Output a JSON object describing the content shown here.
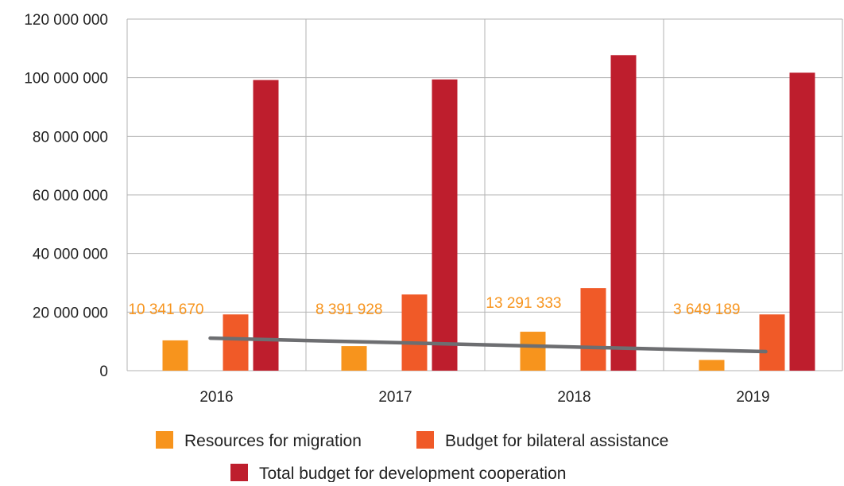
{
  "chart_data": {
    "type": "bar",
    "title": "",
    "xlabel": "",
    "ylabel": "",
    "ylim": [
      0,
      120000000
    ],
    "yticks": [
      0,
      20000000,
      40000000,
      60000000,
      80000000,
      100000000,
      120000000
    ],
    "ytick_labels": [
      "0",
      "20 000 000",
      "40 000 000",
      "60 000 000",
      "80 000 000",
      "100 000 000",
      "120 000 000"
    ],
    "grid": true,
    "legend_position": "bottom",
    "categories": [
      "2016",
      "2017",
      "2018",
      "2019"
    ],
    "series": [
      {
        "name": "Resources for migration",
        "color": "#f7941d",
        "values": [
          10341670,
          8391928,
          13291333,
          3649189
        ],
        "data_labels": [
          "10 341 670",
          "8 391 928",
          "13 291 333",
          "3 649 189"
        ]
      },
      {
        "name": "Budget for bilateral assistance",
        "color": "#f05a28",
        "values": [
          19200000,
          26000000,
          28200000,
          19200000
        ]
      },
      {
        "name": "Total budget for development cooperation",
        "color": "#be1e2d",
        "values": [
          99200000,
          99400000,
          107700000,
          101700000
        ]
      }
    ],
    "trendline": {
      "color": "#6d6e71",
      "start": {
        "category": "2016",
        "value": 11100000
      },
      "end": {
        "category": "2019",
        "value": 6500000
      }
    }
  }
}
